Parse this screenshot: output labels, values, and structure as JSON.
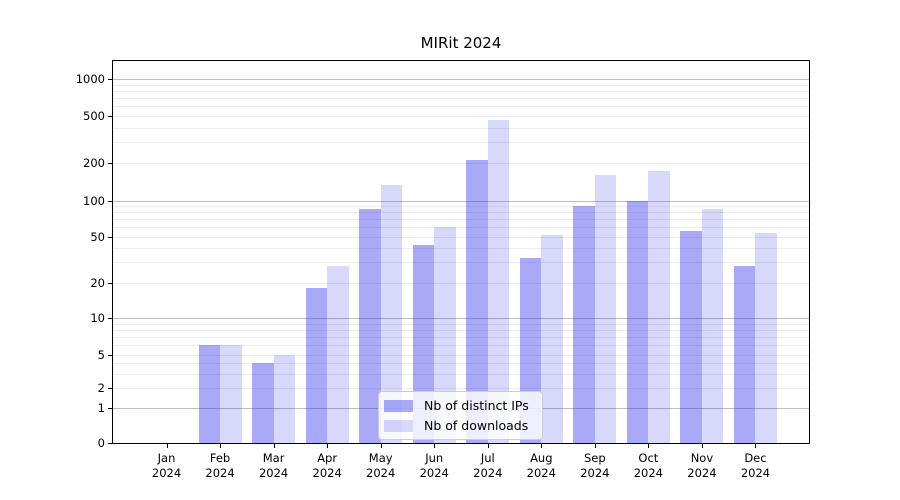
{
  "title": "MIRit 2024",
  "colors": {
    "bar_distinct_ips": "#2828EB66",
    "bar_downloads": "#2828EB2E",
    "grid_major": "#BDBDBD",
    "grid_minor": "#ECECEC",
    "axis": "#000000",
    "legend_border": "#CCCCCC"
  },
  "chart_data": {
    "type": "bar",
    "title": "MIRit 2024",
    "xlabel": "",
    "ylabel": "",
    "categories": [
      "Jan 2024",
      "Feb 2024",
      "Mar 2024",
      "Apr 2024",
      "May 2024",
      "Jun 2024",
      "Jul 2024",
      "Aug 2024",
      "Sep 2024",
      "Oct 2024",
      "Nov 2024",
      "Dec 2024"
    ],
    "x_tick_line1": [
      "Jan",
      "Feb",
      "Mar",
      "Apr",
      "May",
      "Jun",
      "Jul",
      "Aug",
      "Sep",
      "Oct",
      "Nov",
      "Dec"
    ],
    "x_tick_line2": [
      "2024",
      "2024",
      "2024",
      "2024",
      "2024",
      "2024",
      "2024",
      "2024",
      "2024",
      "2024",
      "2024",
      "2024"
    ],
    "series": [
      {
        "name": "Nb of distinct IPs",
        "color": "#2828EB66",
        "values": [
          0,
          6,
          4,
          18,
          85,
          42,
          215,
          33,
          90,
          100,
          56,
          28
        ]
      },
      {
        "name": "Nb of downloads",
        "color": "#2828EB2E",
        "values": [
          0,
          6,
          5,
          28,
          135,
          60,
          460,
          52,
          160,
          175,
          85,
          54
        ]
      }
    ],
    "yticks": [
      0,
      1,
      2,
      5,
      10,
      20,
      50,
      100,
      200,
      500,
      1000
    ],
    "yscale": "log-with-zero",
    "ylim": [
      0,
      1000
    ],
    "grid": true,
    "legend_position": "lower center"
  }
}
